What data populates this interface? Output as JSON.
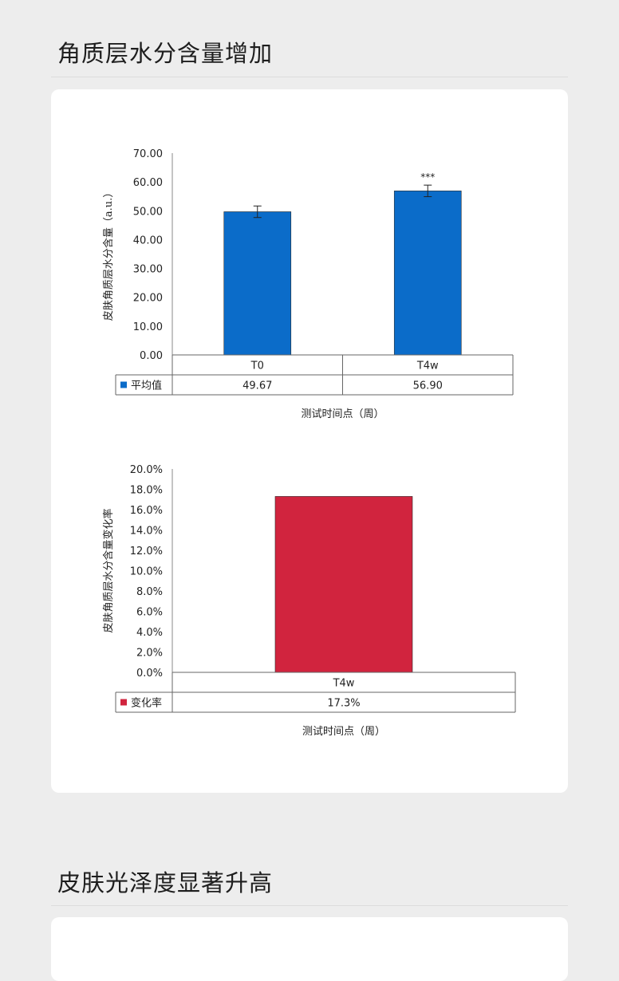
{
  "section1": {
    "title": "角质层水分含量增加"
  },
  "section2": {
    "title": "皮肤光泽度显著升高"
  },
  "colors": {
    "bar_blue": "#0b6cc9",
    "bar_red": "#d1243e"
  },
  "chart_data": [
    {
      "type": "bar",
      "categories": [
        "T0",
        "T4w"
      ],
      "values": [
        49.67,
        56.9
      ],
      "value_labels": [
        "49.67",
        "56.90"
      ],
      "error": [
        2.0,
        2.0
      ],
      "significance": [
        "",
        "***"
      ],
      "ylim": [
        0,
        70
      ],
      "yticks": [
        "0.00",
        "10.00",
        "20.00",
        "30.00",
        "40.00",
        "50.00",
        "60.00",
        "70.00"
      ],
      "ytick_values": [
        0,
        10,
        20,
        30,
        40,
        50,
        60,
        70
      ],
      "ylabel": "皮肤角质层水分含量（a.u.）",
      "xlabel": "测试时间点（周）",
      "legend": "平均值",
      "color": "#0b6cc9"
    },
    {
      "type": "bar",
      "categories": [
        "T4w"
      ],
      "values": [
        17.3
      ],
      "value_labels": [
        "17.3%"
      ],
      "ylim": [
        0,
        20
      ],
      "yticks": [
        "0.0%",
        "2.0%",
        "4.0%",
        "6.0%",
        "8.0%",
        "10.0%",
        "12.0%",
        "14.0%",
        "16.0%",
        "18.0%",
        "20.0%"
      ],
      "ytick_values": [
        0,
        2,
        4,
        6,
        8,
        10,
        12,
        14,
        16,
        18,
        20
      ],
      "ylabel": "皮肤角质层水分含量变化率",
      "xlabel": "测试时间点（周）",
      "legend": "变化率",
      "color": "#d1243e"
    }
  ]
}
